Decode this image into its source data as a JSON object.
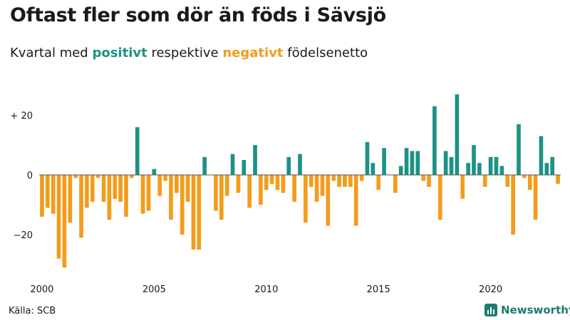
{
  "header": {
    "title": "Oftast fler som dör än föds i Sävsjö",
    "subtitle_prefix": "Kvartal med",
    "subtitle_positive": "positivt",
    "subtitle_middle": "respektive",
    "subtitle_negative": "negativt",
    "subtitle_suffix": "födelsenetto"
  },
  "footer": {
    "source": "Källa: SCB",
    "brand": "Newsworthy"
  },
  "colors": {
    "positive": "#1b9384",
    "negative": "#f39c1c",
    "zero_line": "#555555"
  },
  "chart_data": {
    "type": "bar",
    "title": "Oftast fler som dör än föds i Sävsjö",
    "subtitle": "Kvartal med positivt respektive negativt födelsenetto",
    "x_start_year": 2000,
    "x_tick_labels": [
      "2000",
      "2005",
      "2010",
      "2015",
      "2020"
    ],
    "y_tick_labels": [
      "+ 20",
      "0",
      "−20"
    ],
    "y_ticks": [
      20,
      0,
      -20
    ],
    "ylim": [
      -33,
      30
    ],
    "grid": false,
    "values": [
      -14,
      -11,
      -13,
      -28,
      -31,
      -16,
      -1,
      -21,
      -11,
      -9,
      -1,
      -9,
      -15,
      -8,
      -9,
      -14,
      -1,
      16,
      -13,
      -12,
      2,
      -7,
      -2,
      -15,
      -6,
      -20,
      -9,
      -25,
      -25,
      6,
      0,
      -12,
      -15,
      -7,
      7,
      -6,
      5,
      -11,
      10,
      -10,
      -5,
      -3,
      -5,
      -6,
      6,
      -9,
      7,
      -16,
      -4,
      -9,
      -7,
      -17,
      -2,
      -4,
      -4,
      -4,
      -17,
      -2,
      11,
      4,
      -5,
      9,
      0,
      -6,
      3,
      9,
      8,
      8,
      -2,
      -4,
      23,
      -15,
      8,
      6,
      27,
      -8,
      4,
      10,
      4,
      -4,
      6,
      6,
      3,
      -4,
      -20,
      17,
      -1,
      -5,
      -15,
      13,
      4,
      6,
      -3
    ]
  }
}
